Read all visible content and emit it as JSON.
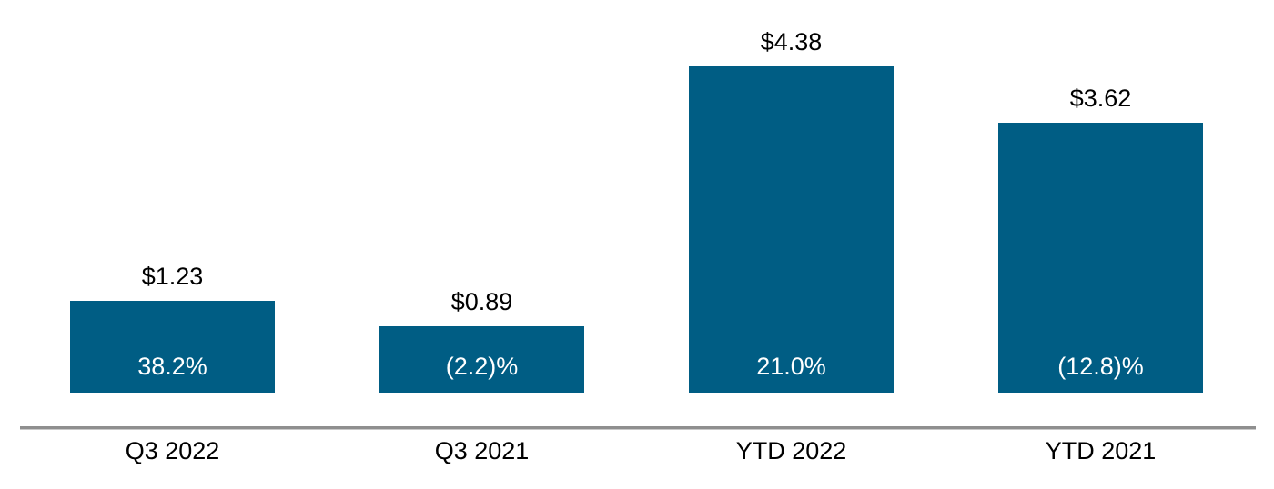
{
  "chart_data": {
    "type": "bar",
    "title": "",
    "xlabel": "",
    "ylabel": "",
    "categories": [
      "Q3 2022",
      "Q3 2021",
      "YTD 2022",
      "YTD 2021"
    ],
    "values": [
      1.23,
      0.89,
      4.38,
      3.62
    ],
    "value_labels": [
      "$1.23",
      "$0.89",
      "$4.38",
      "$3.62"
    ],
    "inner_labels": [
      "38.2%",
      "(2.2)%",
      "21.0%",
      "(12.8)%"
    ],
    "ylim": [
      0,
      4.38
    ],
    "grid": false,
    "legend": false,
    "layout_hints": {
      "bar_labels_position": "above-bars",
      "inner_labels_position": "inside-bottom",
      "axis": "x-axis-line-only, bars float above the axis line"
    },
    "colors": {
      "bar": "#005D84",
      "value_label": "#000000",
      "inner_label": "#FFFFFF",
      "axis_line": "#8F8F8F",
      "category_label": "#000000",
      "background": "#FFFFFF"
    }
  }
}
